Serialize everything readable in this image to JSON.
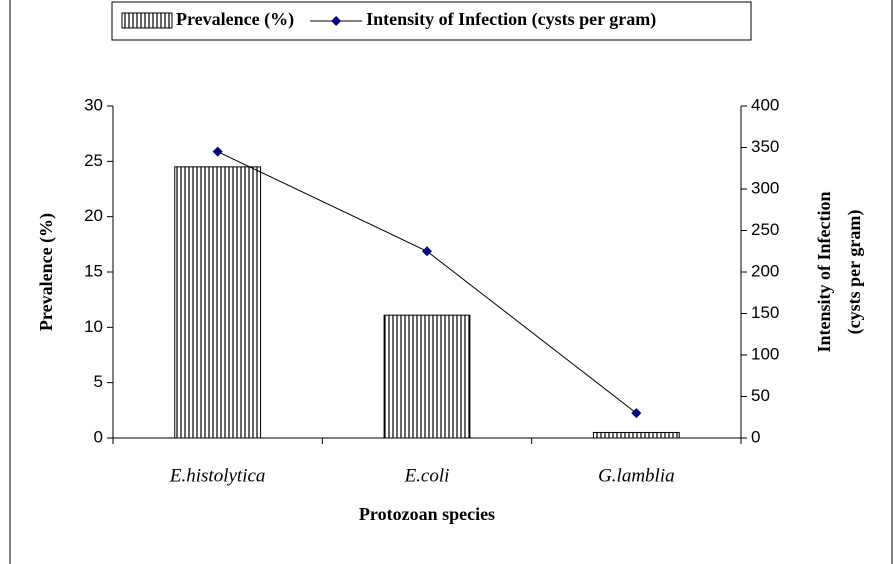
{
  "chart_data": {
    "type": "bar",
    "categories": [
      "E.histolytica",
      "E.coli",
      "G.lamblia"
    ],
    "series": [
      {
        "name": "Prevalence (%)",
        "type": "bar",
        "color": "#000000",
        "values": [
          24.5,
          11.1,
          0.5
        ]
      },
      {
        "name": "Intensity of Infection (cysts per gram)",
        "type": "line",
        "axis": "y2",
        "color": "#000080",
        "values": [
          345,
          225,
          30
        ]
      }
    ],
    "ylim": [
      0,
      30
    ],
    "yticks": [
      0,
      5,
      10,
      15,
      20,
      25,
      30
    ],
    "y2lim": [
      0,
      400
    ],
    "y2ticks": [
      0,
      50,
      100,
      150,
      200,
      250,
      300,
      350,
      400
    ],
    "xlabel": "Protozoan species",
    "ylabel": "Prevalence (%)",
    "y2label": [
      "Intensity of Infection",
      "(cysts per gram)"
    ],
    "legend": "top"
  }
}
